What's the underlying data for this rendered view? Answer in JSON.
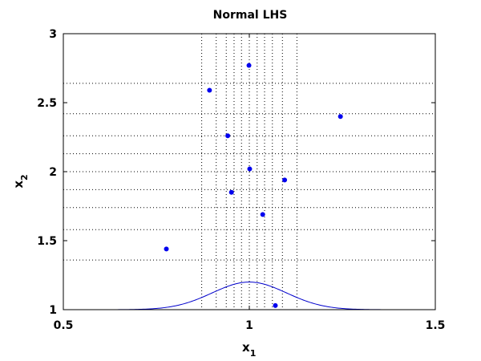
{
  "chart_data": {
    "type": "scatter",
    "title": "Normal LHS",
    "xlabel": {
      "base": "x",
      "sub": "1"
    },
    "ylabel": {
      "base": "x",
      "sub": "2"
    },
    "xlim": [
      0.5,
      1.5
    ],
    "ylim": [
      1,
      3
    ],
    "xticks": [
      0.5,
      1,
      1.5
    ],
    "xtick_labels": [
      "0.5",
      "1",
      "1.5"
    ],
    "yticks": [
      1,
      1.5,
      2,
      2.5,
      3
    ],
    "ytick_labels": [
      "1",
      "1.5",
      "2",
      "2.5",
      "3"
    ],
    "grid_x": [
      0.872,
      0.911,
      0.938,
      0.959,
      0.979,
      1.0,
      1.021,
      1.041,
      1.062,
      1.089,
      1.128
    ],
    "grid_y": [
      1.36,
      1.58,
      1.74,
      1.87,
      2.0,
      2.13,
      2.26,
      2.42,
      2.64
    ],
    "points": [
      {
        "x": 0.777,
        "y": 1.44
      },
      {
        "x": 0.893,
        "y": 2.59
      },
      {
        "x": 0.942,
        "y": 2.26
      },
      {
        "x": 0.952,
        "y": 1.85
      },
      {
        "x": 0.999,
        "y": 2.77
      },
      {
        "x": 1.001,
        "y": 2.02
      },
      {
        "x": 1.036,
        "y": 1.69
      },
      {
        "x": 1.07,
        "y": 1.03
      },
      {
        "x": 1.095,
        "y": 1.94
      },
      {
        "x": 1.245,
        "y": 2.4
      }
    ],
    "density_curve": {
      "type": "normal",
      "mean": 1.0,
      "sd": 0.1,
      "baseline": 1.0,
      "peak_height": 0.2
    },
    "grid": "dotted",
    "colors": {
      "points": "#0000ee",
      "curve": "#0000cc",
      "grid": "#000000",
      "axes": "#000000"
    }
  }
}
